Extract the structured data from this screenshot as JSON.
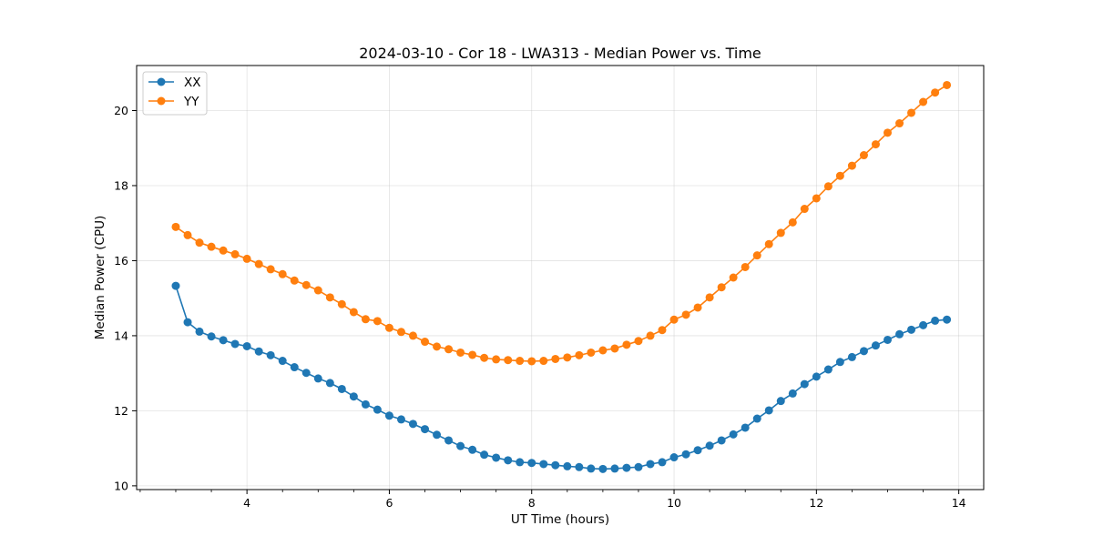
{
  "chart_data": {
    "type": "line",
    "title": "2024-03-10 - Cor 18 - LWA313 - Median Power vs. Time",
    "xlabel": "UT Time (hours)",
    "ylabel": "Median Power (CPU)",
    "xlim": [
      2.45,
      14.35
    ],
    "ylim": [
      9.9,
      21.2
    ],
    "xticks": [
      4,
      6,
      8,
      10,
      12,
      14
    ],
    "yticks": [
      10,
      12,
      14,
      16,
      18,
      20
    ],
    "xtick_labels": [
      "4",
      "6",
      "8",
      "10",
      "12",
      "14"
    ],
    "ytick_labels": [
      "10",
      "12",
      "14",
      "16",
      "18",
      "20"
    ],
    "grid": true,
    "legend_position": "upper-left",
    "x": [
      3.0,
      3.167,
      3.333,
      3.5,
      3.667,
      3.833,
      4.0,
      4.167,
      4.333,
      4.5,
      4.667,
      4.833,
      5.0,
      5.167,
      5.333,
      5.5,
      5.667,
      5.833,
      6.0,
      6.167,
      6.333,
      6.5,
      6.667,
      6.833,
      7.0,
      7.167,
      7.333,
      7.5,
      7.667,
      7.833,
      8.0,
      8.167,
      8.333,
      8.5,
      8.667,
      8.833,
      9.0,
      9.167,
      9.333,
      9.5,
      9.667,
      9.833,
      10.0,
      10.167,
      10.333,
      10.5,
      10.667,
      10.833,
      11.0,
      11.167,
      11.333,
      11.5,
      11.667,
      11.833,
      12.0,
      12.167,
      12.333,
      12.5,
      12.667,
      12.833,
      13.0,
      13.167,
      13.333,
      13.5,
      13.667,
      13.833
    ],
    "series": [
      {
        "name": "XX",
        "color": "#1f77b4",
        "values": [
          15.33,
          14.36,
          14.11,
          13.98,
          13.88,
          13.78,
          13.72,
          13.58,
          13.48,
          13.33,
          13.16,
          13.01,
          12.86,
          12.74,
          12.58,
          12.38,
          12.17,
          12.03,
          11.87,
          11.77,
          11.65,
          11.51,
          11.36,
          11.21,
          11.06,
          10.96,
          10.83,
          10.75,
          10.68,
          10.63,
          10.61,
          10.58,
          10.55,
          10.52,
          10.5,
          10.46,
          10.45,
          10.46,
          10.48,
          10.5,
          10.58,
          10.63,
          10.76,
          10.84,
          10.95,
          11.07,
          11.21,
          11.37,
          11.55,
          11.79,
          12.01,
          12.26,
          12.46,
          12.71,
          12.91,
          13.1,
          13.3,
          13.43,
          13.59,
          13.74,
          13.89,
          14.04,
          14.16,
          14.28,
          14.4,
          14.43
        ]
      },
      {
        "name": "YY",
        "color": "#ff7f0e",
        "values": [
          16.9,
          16.68,
          16.48,
          16.37,
          16.27,
          16.17,
          16.05,
          15.91,
          15.77,
          15.64,
          15.47,
          15.35,
          15.21,
          15.02,
          14.84,
          14.63,
          14.44,
          14.39,
          14.21,
          14.1,
          14.0,
          13.84,
          13.71,
          13.64,
          13.55,
          13.49,
          13.41,
          13.37,
          13.35,
          13.33,
          13.32,
          13.33,
          13.38,
          13.42,
          13.48,
          13.55,
          13.61,
          13.66,
          13.76,
          13.86,
          14.0,
          14.15,
          14.43,
          14.56,
          14.75,
          15.02,
          15.29,
          15.55,
          15.83,
          16.14,
          16.44,
          16.74,
          17.02,
          17.38,
          17.66,
          17.98,
          18.26,
          18.53,
          18.81,
          19.1,
          19.41,
          19.66,
          19.94,
          20.23,
          20.48,
          20.68
        ]
      }
    ]
  }
}
